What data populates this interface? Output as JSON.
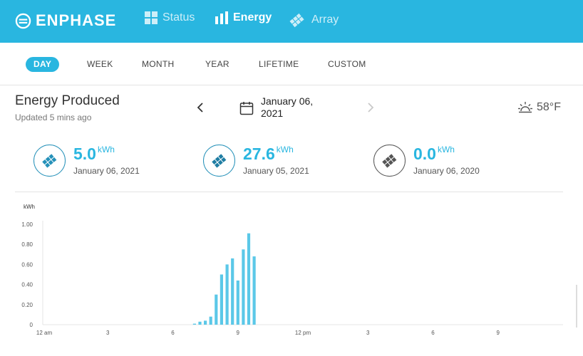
{
  "app": {
    "brand": "ENPHASE"
  },
  "nav": {
    "status": "Status",
    "energy": "Energy",
    "array": "Array"
  },
  "tabs": [
    "DAY",
    "WEEK",
    "MONTH",
    "YEAR",
    "LIFETIME",
    "CUSTOM"
  ],
  "active_tab": "DAY",
  "header": {
    "title": "Energy Produced",
    "updated": "Updated 5 mins ago",
    "date_line1": "January 06,",
    "date_line2": "2021",
    "temperature": "58°F"
  },
  "stats": [
    {
      "value": "5.0",
      "unit": "kWh",
      "date": "January 06, 2021"
    },
    {
      "value": "27.6",
      "unit": "kWh",
      "date": "January 05, 2021"
    },
    {
      "value": "0.0",
      "unit": "kWh",
      "date": "January 06, 2020"
    }
  ],
  "colors": {
    "accent": "#29b6e0",
    "bar": "#5bc8e8",
    "dark_icon": "#1f7da3",
    "gray_icon": "#555555"
  },
  "chart_data": {
    "type": "bar",
    "ylabel": "kWh",
    "ylim": [
      0,
      1.0
    ],
    "yticks": [
      "0",
      "0.20",
      "0.40",
      "0.60",
      "0.80",
      "1.00"
    ],
    "xticks": [
      "12 am",
      "3",
      "6",
      "9",
      "12 pm",
      "3",
      "6",
      "9"
    ],
    "x_unit": "hours",
    "x": [
      7.0,
      7.25,
      7.5,
      7.75,
      8.0,
      8.25,
      8.5,
      8.75,
      9.0,
      9.25,
      9.5,
      9.75
    ],
    "values": [
      0.01,
      0.03,
      0.04,
      0.08,
      0.3,
      0.5,
      0.6,
      0.66,
      0.44,
      0.75,
      0.91,
      0.68
    ]
  }
}
